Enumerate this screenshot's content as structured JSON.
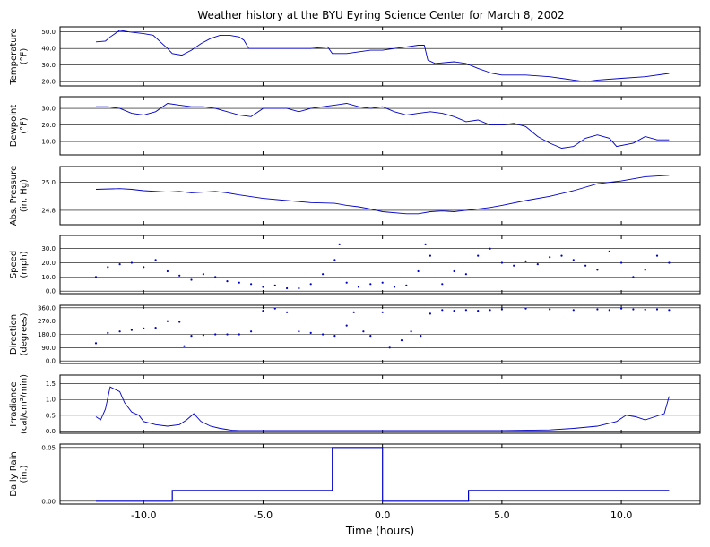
{
  "chart_data": {
    "type": "line",
    "title": "Weather history at the BYU Eyring Science Center for March 8, 2002",
    "xlabel": "Time (hours)",
    "xlim": [
      -13.5,
      13.3
    ],
    "xticks": [
      "-10.0",
      "-5.0",
      "0.0",
      "5.0",
      "10.0"
    ],
    "xtick_values": [
      -10,
      -5,
      0,
      5,
      10
    ],
    "color": "#0000cc",
    "panels": [
      {
        "key": "temperature",
        "ylabel": [
          "Temperature",
          "(°F)"
        ],
        "style": "line",
        "ylim": [
          18.5,
          52
        ],
        "yticks": [
          20,
          30,
          40,
          50
        ],
        "yticklabels": [
          "20.0",
          "30.0",
          "40.0",
          "50.0"
        ],
        "series": [
          [
            -12,
            44
          ],
          [
            -11.6,
            44.5
          ],
          [
            -11.4,
            47
          ],
          [
            -11,
            51
          ],
          [
            -10.6,
            50
          ],
          [
            -10,
            49
          ],
          [
            -9.6,
            48
          ],
          [
            -9,
            40
          ],
          [
            -8.8,
            37
          ],
          [
            -8.4,
            36
          ],
          [
            -8,
            39
          ],
          [
            -7.6,
            43
          ],
          [
            -7.2,
            46
          ],
          [
            -6.8,
            48
          ],
          [
            -6.4,
            48
          ],
          [
            -6,
            47
          ],
          [
            -5.8,
            45
          ],
          [
            -5.6,
            40
          ],
          [
            -5,
            40
          ],
          [
            -4,
            40
          ],
          [
            -3,
            40
          ],
          [
            -2.3,
            41
          ],
          [
            -2.1,
            37
          ],
          [
            -1.5,
            37
          ],
          [
            -1,
            38
          ],
          [
            -0.5,
            39
          ],
          [
            0,
            39
          ],
          [
            0.5,
            40
          ],
          [
            1,
            41
          ],
          [
            1.5,
            42
          ],
          [
            1.75,
            42
          ],
          [
            1.9,
            33
          ],
          [
            2.2,
            31
          ],
          [
            3,
            32
          ],
          [
            3.5,
            31
          ],
          [
            4,
            28
          ],
          [
            4.6,
            25
          ],
          [
            5,
            24
          ],
          [
            6,
            24
          ],
          [
            7,
            23
          ],
          [
            8,
            21
          ],
          [
            8.5,
            20
          ],
          [
            9,
            21
          ],
          [
            10,
            22
          ],
          [
            11,
            23
          ],
          [
            12,
            25
          ]
        ]
      },
      {
        "key": "dewpoint",
        "ylabel": [
          "Dewpoint",
          "(°F)"
        ],
        "style": "line",
        "ylim": [
          3,
          36
        ],
        "yticks": [
          10,
          20,
          30
        ],
        "yticklabels": [
          "10.0",
          "20.0",
          "30.0"
        ],
        "series": [
          [
            -12,
            31
          ],
          [
            -11.5,
            31
          ],
          [
            -11,
            30
          ],
          [
            -10.5,
            27
          ],
          [
            -10,
            26
          ],
          [
            -9.5,
            28
          ],
          [
            -9,
            33
          ],
          [
            -8.5,
            32
          ],
          [
            -8,
            31
          ],
          [
            -7.5,
            31
          ],
          [
            -7,
            30
          ],
          [
            -6.5,
            28
          ],
          [
            -6,
            26
          ],
          [
            -5.5,
            25
          ],
          [
            -5,
            30
          ],
          [
            -4,
            30
          ],
          [
            -3.5,
            28
          ],
          [
            -3,
            30
          ],
          [
            -2.5,
            31
          ],
          [
            -2,
            32
          ],
          [
            -1.5,
            33
          ],
          [
            -1,
            31
          ],
          [
            -0.5,
            30
          ],
          [
            0,
            31
          ],
          [
            0.5,
            28
          ],
          [
            1,
            26
          ],
          [
            1.5,
            27
          ],
          [
            2,
            28
          ],
          [
            2.5,
            27
          ],
          [
            3,
            25
          ],
          [
            3.5,
            22
          ],
          [
            4,
            23
          ],
          [
            4.5,
            20
          ],
          [
            5,
            20
          ],
          [
            5.5,
            21
          ],
          [
            6,
            19
          ],
          [
            6.5,
            13
          ],
          [
            7,
            9
          ],
          [
            7.5,
            6
          ],
          [
            8,
            7
          ],
          [
            8.5,
            12
          ],
          [
            9,
            14
          ],
          [
            9.5,
            12
          ],
          [
            9.8,
            7
          ],
          [
            10.5,
            9
          ],
          [
            11,
            13
          ],
          [
            11.5,
            11
          ],
          [
            12,
            11
          ]
        ]
      },
      {
        "key": "pressure",
        "ylabel": [
          "Abs. Pressure",
          "(in. Hg)"
        ],
        "style": "line",
        "ylim": [
          24.71,
          25.1
        ],
        "yticks": [
          24.8,
          25.0
        ],
        "yticklabels": [
          "24.8",
          "25.0"
        ],
        "series": [
          [
            -12,
            24.95
          ],
          [
            -11,
            24.955
          ],
          [
            -10.5,
            24.95
          ],
          [
            -10,
            24.94
          ],
          [
            -9,
            24.93
          ],
          [
            -8.5,
            24.935
          ],
          [
            -8,
            24.925
          ],
          [
            -7,
            24.935
          ],
          [
            -6.5,
            24.925
          ],
          [
            -6,
            24.91
          ],
          [
            -5,
            24.885
          ],
          [
            -4,
            24.87
          ],
          [
            -3,
            24.855
          ],
          [
            -2,
            24.85
          ],
          [
            -1.5,
            24.835
          ],
          [
            -1,
            24.825
          ],
          [
            -0.5,
            24.81
          ],
          [
            0,
            24.79
          ],
          [
            1,
            24.775
          ],
          [
            1.5,
            24.775
          ],
          [
            2,
            24.79
          ],
          [
            2.5,
            24.795
          ],
          [
            3,
            24.79
          ],
          [
            3.5,
            24.8
          ],
          [
            4,
            24.81
          ],
          [
            4.5,
            24.82
          ],
          [
            5,
            24.835
          ],
          [
            6,
            24.87
          ],
          [
            7,
            24.9
          ],
          [
            8,
            24.94
          ],
          [
            9,
            24.99
          ],
          [
            10,
            25.01
          ],
          [
            11,
            25.04
          ],
          [
            12,
            25.05
          ]
        ]
      },
      {
        "key": "speed",
        "ylabel": [
          "Speed",
          "(mph)"
        ],
        "style": "dots",
        "ylim": [
          -0.5,
          38
        ],
        "yticks": [
          0,
          10,
          20,
          30
        ],
        "yticklabels": [
          "0.0",
          "10.0",
          "20.0",
          "30.0"
        ],
        "series": [
          [
            -12,
            10
          ],
          [
            -11.5,
            17
          ],
          [
            -11,
            19
          ],
          [
            -10.5,
            20
          ],
          [
            -10,
            17
          ],
          [
            -9.5,
            22
          ],
          [
            -9,
            14
          ],
          [
            -8.5,
            11
          ],
          [
            -8,
            8
          ],
          [
            -7.5,
            12
          ],
          [
            -7,
            10
          ],
          [
            -6.5,
            7
          ],
          [
            -6,
            6
          ],
          [
            -5.5,
            5
          ],
          [
            -5,
            3
          ],
          [
            -4.5,
            4
          ],
          [
            -4,
            2
          ],
          [
            -3.5,
            2
          ],
          [
            -3,
            5
          ],
          [
            -2.5,
            12
          ],
          [
            -2,
            22
          ],
          [
            -1.8,
            33
          ],
          [
            -1.5,
            6
          ],
          [
            -1,
            3
          ],
          [
            -0.5,
            5
          ],
          [
            0,
            6
          ],
          [
            0.5,
            3
          ],
          [
            1,
            4
          ],
          [
            1.5,
            14
          ],
          [
            1.8,
            33
          ],
          [
            2,
            25
          ],
          [
            2.5,
            5
          ],
          [
            3,
            14
          ],
          [
            3.5,
            12
          ],
          [
            4,
            25
          ],
          [
            4.5,
            30
          ],
          [
            5,
            20
          ],
          [
            5.5,
            18
          ],
          [
            6,
            21
          ],
          [
            6.5,
            19
          ],
          [
            7,
            24
          ],
          [
            7.5,
            25
          ],
          [
            8,
            22
          ],
          [
            8.5,
            18
          ],
          [
            9,
            15
          ],
          [
            9.5,
            28
          ],
          [
            10,
            20
          ],
          [
            10.5,
            10
          ],
          [
            11,
            15
          ],
          [
            11.5,
            25
          ],
          [
            12,
            20
          ]
        ]
      },
      {
        "key": "direction",
        "ylabel": [
          "Direction",
          "(degrees)"
        ],
        "style": "dots",
        "ylim": [
          -5,
          365
        ],
        "yticks": [
          0,
          90,
          180,
          270,
          360
        ],
        "yticklabels": [
          "0.0",
          "90.0",
          "180.0",
          "270.0",
          "360.0"
        ],
        "series": [
          [
            -12,
            120
          ],
          [
            -11.5,
            190
          ],
          [
            -11,
            200
          ],
          [
            -10.5,
            210
          ],
          [
            -10,
            220
          ],
          [
            -9.5,
            225
          ],
          [
            -9,
            270
          ],
          [
            -8.5,
            265
          ],
          [
            -8.3,
            100
          ],
          [
            -8,
            170
          ],
          [
            -7.5,
            175
          ],
          [
            -7,
            180
          ],
          [
            -6.5,
            180
          ],
          [
            -6,
            180
          ],
          [
            -5.5,
            200
          ],
          [
            -5,
            340
          ],
          [
            -4.5,
            355
          ],
          [
            -4,
            330
          ],
          [
            -3.5,
            200
          ],
          [
            -3,
            190
          ],
          [
            -2.5,
            180
          ],
          [
            -2,
            170
          ],
          [
            -1.5,
            240
          ],
          [
            -1.2,
            330
          ],
          [
            -0.8,
            200
          ],
          [
            -0.5,
            170
          ],
          [
            0,
            330
          ],
          [
            0.3,
            90
          ],
          [
            0.8,
            140
          ],
          [
            1.2,
            200
          ],
          [
            1.6,
            170
          ],
          [
            2,
            320
          ],
          [
            2.5,
            345
          ],
          [
            3,
            340
          ],
          [
            3.5,
            345
          ],
          [
            4,
            340
          ],
          [
            4.5,
            345
          ],
          [
            5,
            350
          ],
          [
            6,
            355
          ],
          [
            7,
            350
          ],
          [
            8,
            345
          ],
          [
            9,
            350
          ],
          [
            9.5,
            345
          ],
          [
            10,
            355
          ],
          [
            10.5,
            350
          ],
          [
            11,
            348
          ],
          [
            11.5,
            350
          ],
          [
            12,
            345
          ]
        ]
      },
      {
        "key": "irradiance",
        "ylabel": [
          "Irradiance",
          "(cal/cm²/min)"
        ],
        "style": "line",
        "ylim": [
          -0.02,
          1.72
        ],
        "yticks": [
          0,
          0.5,
          1.0,
          1.5
        ],
        "yticklabels": [
          "0.0",
          "0.5",
          "1.0",
          "1.5"
        ],
        "series": [
          [
            -12,
            0.45
          ],
          [
            -11.8,
            0.35
          ],
          [
            -11.6,
            0.7
          ],
          [
            -11.4,
            1.4
          ],
          [
            -11,
            1.25
          ],
          [
            -10.8,
            0.9
          ],
          [
            -10.5,
            0.6
          ],
          [
            -10.2,
            0.5
          ],
          [
            -10,
            0.3
          ],
          [
            -9.5,
            0.2
          ],
          [
            -9,
            0.15
          ],
          [
            -8.5,
            0.2
          ],
          [
            -8.2,
            0.35
          ],
          [
            -7.9,
            0.55
          ],
          [
            -7.6,
            0.3
          ],
          [
            -7.2,
            0.15
          ],
          [
            -6.8,
            0.08
          ],
          [
            -6.3,
            0.02
          ],
          [
            -6,
            0.01
          ],
          [
            -5,
            0.01
          ],
          [
            0,
            0.01
          ],
          [
            5,
            0.01
          ],
          [
            7,
            0.03
          ],
          [
            8,
            0.08
          ],
          [
            9,
            0.15
          ],
          [
            9.8,
            0.3
          ],
          [
            10.2,
            0.5
          ],
          [
            10.6,
            0.45
          ],
          [
            11,
            0.35
          ],
          [
            11.4,
            0.45
          ],
          [
            11.8,
            0.55
          ],
          [
            12,
            1.1
          ]
        ]
      },
      {
        "key": "rain",
        "ylabel": [
          "Daily Rain",
          "(in.)"
        ],
        "style": "steps",
        "ylim": [
          -0.001,
          0.0515
        ],
        "yticks": [
          0,
          0.05
        ],
        "yticklabels": [
          "0.00",
          "0.05"
        ],
        "series": [
          [
            -12,
            0.0
          ],
          [
            -8.8,
            0.0
          ],
          [
            -8.8,
            0.01
          ],
          [
            -2.1,
            0.01
          ],
          [
            -2.1,
            0.05
          ],
          [
            0,
            0.05
          ],
          [
            0,
            0.0
          ],
          [
            3.6,
            0.0
          ],
          [
            3.6,
            0.01
          ],
          [
            12,
            0.01
          ]
        ]
      }
    ]
  }
}
